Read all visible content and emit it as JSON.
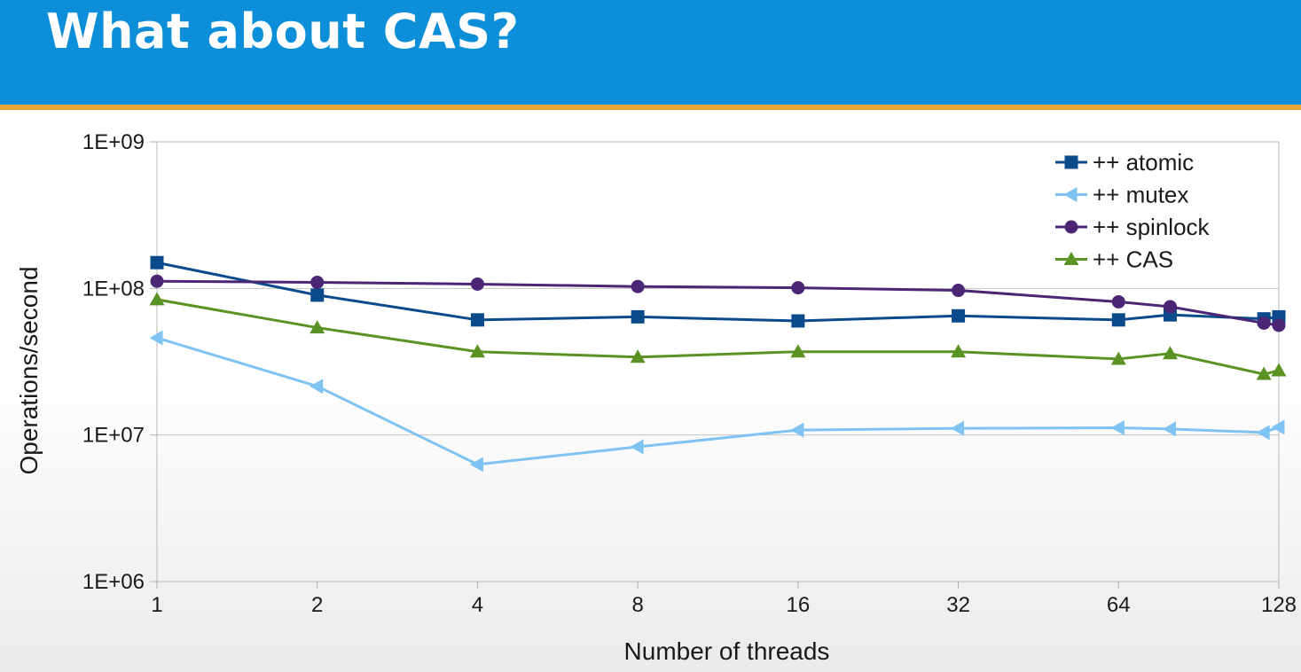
{
  "slide": {
    "title": "What about CAS?"
  },
  "chart_data": {
    "type": "line",
    "xlabel": "Number of threads",
    "ylabel": "Operations/second",
    "x_scale": "log2",
    "y_scale": "log10",
    "xlim": [
      1,
      128
    ],
    "ylim": [
      1000000,
      1000000000
    ],
    "x_ticks": [
      "1",
      "2",
      "4",
      "8",
      "16",
      "32",
      "64",
      "128"
    ],
    "y_ticks": [
      "1E+06",
      "1E+07",
      "1E+08",
      "1E+09"
    ],
    "grid": "horizontal",
    "legend": "top-right",
    "series": [
      {
        "name": "++ atomic",
        "color": "#0b4a8b",
        "marker": "square",
        "points": [
          [
            1,
            150000000
          ],
          [
            2,
            90000000
          ],
          [
            4,
            61000000
          ],
          [
            8,
            64000000
          ],
          [
            16,
            60000000
          ],
          [
            32,
            65000000
          ],
          [
            64,
            61000000
          ],
          [
            80,
            66000000
          ],
          [
            120,
            62000000
          ],
          [
            128,
            64000000
          ]
        ]
      },
      {
        "name": "++ mutex",
        "color": "#7fc3f2",
        "marker": "triangle-left",
        "points": [
          [
            1,
            46000000
          ],
          [
            2,
            21500000
          ],
          [
            4,
            6300000
          ],
          [
            8,
            8300000
          ],
          [
            16,
            10800000
          ],
          [
            32,
            11100000
          ],
          [
            64,
            11200000
          ],
          [
            80,
            11000000
          ],
          [
            120,
            10400000
          ],
          [
            128,
            11300000
          ]
        ]
      },
      {
        "name": "++ spinlock",
        "color": "#4a2675",
        "marker": "circle",
        "points": [
          [
            1,
            112000000
          ],
          [
            2,
            110000000
          ],
          [
            4,
            107000000
          ],
          [
            8,
            103000000
          ],
          [
            16,
            101000000
          ],
          [
            32,
            97000000
          ],
          [
            64,
            81000000
          ],
          [
            80,
            75000000
          ],
          [
            120,
            58000000
          ],
          [
            128,
            56000000
          ]
        ]
      },
      {
        "name": "++ CAS",
        "color": "#5a9323",
        "marker": "triangle-up",
        "points": [
          [
            1,
            84000000
          ],
          [
            2,
            54000000
          ],
          [
            4,
            37000000
          ],
          [
            8,
            34000000
          ],
          [
            16,
            37000000
          ],
          [
            32,
            37000000
          ],
          [
            64,
            33000000
          ],
          [
            80,
            36000000
          ],
          [
            120,
            26000000
          ],
          [
            128,
            27500000
          ]
        ]
      }
    ]
  }
}
